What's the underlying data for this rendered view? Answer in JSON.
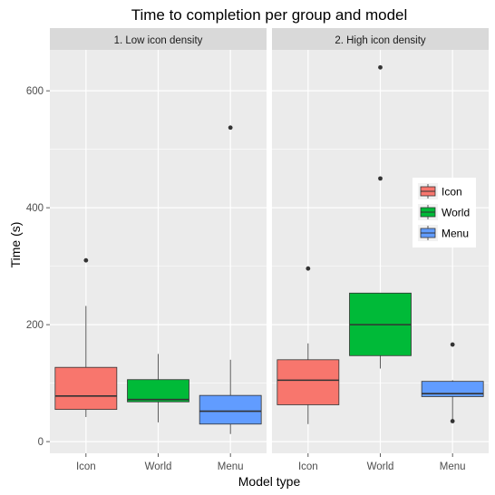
{
  "chart_data": {
    "type": "box",
    "title": "Time to completion per group and model",
    "xlabel": "Model type",
    "ylabel": "Time (s)",
    "ylim": [
      -20,
      670
    ],
    "yticks": [
      0,
      200,
      400,
      600
    ],
    "categories": [
      "Icon",
      "World",
      "Menu"
    ],
    "legend": {
      "placement": "right-inside",
      "entries": [
        "Icon",
        "World",
        "Menu"
      ]
    },
    "colors": {
      "Icon": "#F8766D",
      "World": "#00BA38",
      "Menu": "#619CFF",
      "panel_bg": "#EBEBEB",
      "strip_bg": "#D9D9D9",
      "grid": "#FFFFFF"
    },
    "grid": true,
    "panels": [
      {
        "label": "1. Low icon density",
        "boxes": [
          {
            "category": "Icon",
            "whisker_low": 42,
            "q1": 55,
            "median": 78,
            "q3": 127,
            "whisker_high": 232,
            "outliers": [
              310
            ]
          },
          {
            "category": "World",
            "whisker_low": 33,
            "q1": 68,
            "median": 72,
            "q3": 106,
            "whisker_high": 150,
            "outliers": []
          },
          {
            "category": "Menu",
            "whisker_low": 13,
            "q1": 30,
            "median": 52,
            "q3": 79,
            "whisker_high": 140,
            "outliers": [
              537
            ]
          }
        ]
      },
      {
        "label": "2. High icon density",
        "boxes": [
          {
            "category": "Icon",
            "whisker_low": 30,
            "q1": 63,
            "median": 105,
            "q3": 140,
            "whisker_high": 168,
            "outliers": [
              296
            ]
          },
          {
            "category": "World",
            "whisker_low": 125,
            "q1": 147,
            "median": 200,
            "q3": 254,
            "whisker_high": 254,
            "outliers": [
              450,
              640
            ]
          },
          {
            "category": "Menu",
            "whisker_low": 35,
            "q1": 77,
            "median": 82,
            "q3": 103,
            "whisker_high": 105,
            "outliers": [
              35,
              166
            ]
          }
        ]
      }
    ]
  }
}
